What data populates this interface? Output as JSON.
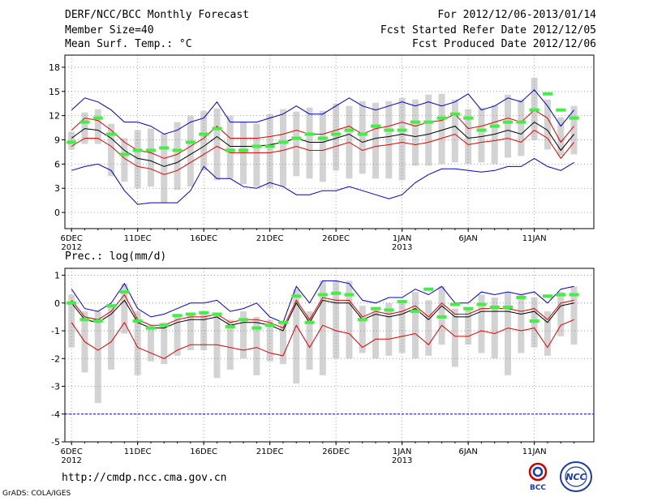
{
  "header": {
    "title": "DERF/NCC/BCC Monthly Forecast",
    "member_size": "Member Size=40",
    "variable": "Mean Surf. Temp.: °C",
    "for_range": "For 2012/12/06-2013/01/14",
    "fcst_started": "Fcst Started Refer Date 2012/12/05",
    "fcst_produced": "Fcst Produced Date 2012/12/06"
  },
  "footer": {
    "url": "http://cmdp.ncc.cma.gov.cn",
    "credit": "GrADS: COLA/IGES",
    "logo_bcc": "BCC",
    "logo_ncc": "NCC"
  },
  "colors": {
    "mean": "#000000",
    "spread": "#e00000",
    "envelope": "#0000cc",
    "box": "#d3d3d3",
    "observed": "#44ee44",
    "grid": "#888888"
  },
  "chart_data": [
    {
      "type": "line",
      "title": "Mean Surf. Temp.: °C",
      "x_tick_labels": [
        "6DEC",
        "11DEC",
        "16DEC",
        "21DEC",
        "26DEC",
        "1JAN",
        "6JAN",
        "11JAN"
      ],
      "x_tick_days": [
        1,
        6,
        11,
        16,
        21,
        26,
        31,
        36
      ],
      "year_labels": [
        {
          "day": 1,
          "text": "2012"
        },
        {
          "day": 26,
          "text": "2013"
        }
      ],
      "ylim": [
        -2,
        19.5
      ],
      "yticks": [
        0,
        3,
        6,
        9,
        12,
        15,
        18
      ],
      "grid": true,
      "days": [
        1,
        2,
        3,
        4,
        5,
        6,
        7,
        8,
        9,
        10,
        11,
        12,
        13,
        14,
        15,
        16,
        17,
        18,
        19,
        20,
        21,
        22,
        23,
        24,
        25,
        26,
        27,
        28,
        29,
        30,
        31,
        32,
        33,
        34,
        35,
        36,
        37,
        38,
        39
      ],
      "series": [
        {
          "name": "max",
          "color": "#0000cc",
          "values": [
            12.7,
            14.2,
            13.7,
            12.7,
            11.2,
            11.2,
            10.7,
            9.7,
            10.2,
            11.2,
            11.7,
            13.7,
            11.2,
            11.2,
            11.2,
            11.7,
            12.2,
            13.2,
            12.2,
            12.2,
            13.2,
            14.2,
            13.2,
            12.7,
            13.2,
            13.7,
            13.2,
            13.7,
            13.2,
            13.7,
            14.7,
            12.7,
            13.2,
            14.2,
            13.7,
            15.2,
            13.2,
            10.7,
            12.7
          ]
        },
        {
          "name": "upper",
          "color": "#e00000",
          "values": [
            10.2,
            11.7,
            11.4,
            10.2,
            8.7,
            7.7,
            7.4,
            6.7,
            7.2,
            8.2,
            9.2,
            10.7,
            9.2,
            9.2,
            9.2,
            9.4,
            9.7,
            10.2,
            9.7,
            9.7,
            10.2,
            10.7,
            9.7,
            10.4,
            10.7,
            11.2,
            10.7,
            11.2,
            11.4,
            12.2,
            10.4,
            10.7,
            11.2,
            11.7,
            11.2,
            12.7,
            11.7,
            8.7,
            10.7
          ]
        },
        {
          "name": "mean",
          "color": "#000000",
          "values": [
            9.2,
            10.4,
            10.2,
            9.2,
            7.7,
            6.7,
            6.4,
            5.7,
            6.2,
            7.2,
            8.2,
            9.4,
            8.2,
            8.2,
            8.2,
            8.4,
            8.7,
            9.2,
            8.7,
            8.7,
            9.2,
            9.7,
            8.7,
            9.2,
            9.4,
            9.7,
            9.4,
            9.7,
            10.2,
            10.7,
            9.2,
            9.4,
            9.7,
            10.2,
            9.7,
            11.2,
            10.2,
            7.7,
            9.7
          ]
        },
        {
          "name": "lower",
          "color": "#e00000",
          "values": [
            8.2,
            9.2,
            9.2,
            8.2,
            6.7,
            5.7,
            5.4,
            4.7,
            5.2,
            6.2,
            7.2,
            8.2,
            7.4,
            7.4,
            7.4,
            7.4,
            7.7,
            8.2,
            7.7,
            7.7,
            8.2,
            8.7,
            7.7,
            8.2,
            8.4,
            8.7,
            8.4,
            8.7,
            9.2,
            9.7,
            8.4,
            8.7,
            8.9,
            9.2,
            8.7,
            10.2,
            9.2,
            6.7,
            8.7
          ]
        },
        {
          "name": "min",
          "color": "#0000cc",
          "values": [
            5.2,
            5.7,
            6.0,
            5.2,
            2.7,
            1.0,
            1.2,
            1.2,
            1.2,
            2.7,
            5.7,
            4.2,
            4.2,
            3.2,
            3.0,
            3.7,
            3.2,
            2.2,
            2.2,
            2.7,
            2.7,
            3.2,
            2.7,
            2.2,
            1.7,
            2.2,
            3.7,
            4.7,
            5.4,
            5.4,
            5.2,
            5.0,
            5.2,
            5.7,
            5.7,
            6.7,
            5.7,
            5.2,
            6.2
          ]
        }
      ],
      "boxes": {
        "low": [
          7.8,
          8.5,
          8.5,
          4.5,
          3.8,
          3.0,
          3.2,
          1.2,
          2.8,
          3.2,
          5.2,
          4.0,
          4.2,
          3.5,
          3.2,
          3.0,
          3.2,
          4.5,
          4.2,
          3.8,
          5.2,
          4.2,
          4.8,
          4.2,
          4.2,
          4.0,
          5.8,
          5.8,
          6.0,
          6.2,
          6.0,
          6.2,
          6.0,
          6.8,
          7.0,
          9.0,
          7.8,
          7.0,
          7.2
        ],
        "high": [
          10.0,
          12.4,
          12.8,
          11.0,
          9.2,
          10.2,
          10.4,
          9.8,
          11.2,
          12.0,
          12.6,
          12.9,
          12.0,
          11.2,
          11.0,
          12.2,
          12.8,
          12.5,
          13.0,
          12.6,
          13.5,
          13.2,
          13.8,
          13.6,
          13.8,
          14.2,
          14.0,
          14.6,
          14.7,
          14.0,
          12.8,
          13.0,
          13.3,
          14.6,
          14.0,
          16.7,
          14.0,
          11.8,
          13.2
        ]
      },
      "observed": [
        8.7,
        11.2,
        11.7,
        9.7,
        7.2,
        7.7,
        7.7,
        8.0,
        7.7,
        8.7,
        9.7,
        10.4,
        7.7,
        7.7,
        8.2,
        8.2,
        8.7,
        9.2,
        9.7,
        9.2,
        9.7,
        10.2,
        9.7,
        10.7,
        10.2,
        10.2,
        11.2,
        11.2,
        11.7,
        12.2,
        11.7,
        10.2,
        10.7,
        11.2,
        11.2,
        12.7,
        14.7,
        12.7,
        11.7
      ]
    },
    {
      "type": "line",
      "title": "Prec.: log(mm/d)",
      "x_tick_labels": [
        "6DEC",
        "11DEC",
        "16DEC",
        "21DEC",
        "26DEC",
        "1JAN",
        "6JAN",
        "11JAN"
      ],
      "x_tick_days": [
        1,
        6,
        11,
        16,
        21,
        26,
        31,
        36
      ],
      "year_labels": [
        {
          "day": 1,
          "text": "2012"
        },
        {
          "day": 26,
          "text": "2013"
        }
      ],
      "ylim": [
        -5,
        1.25
      ],
      "yticks": [
        -5,
        -4,
        -3,
        -2,
        -1,
        0,
        1
      ],
      "grid": true,
      "reference_line": {
        "value": -4,
        "color": "#0000cc",
        "style": "dash"
      },
      "days": [
        1,
        2,
        3,
        4,
        5,
        6,
        7,
        8,
        9,
        10,
        11,
        12,
        13,
        14,
        15,
        16,
        17,
        18,
        19,
        20,
        21,
        22,
        23,
        24,
        25,
        26,
        27,
        28,
        29,
        30,
        31,
        32,
        33,
        34,
        35,
        36,
        37,
        38,
        39
      ],
      "series": [
        {
          "name": "max",
          "color": "#0000cc",
          "values": [
            0.5,
            -0.2,
            -0.3,
            0.0,
            0.7,
            -0.2,
            -0.5,
            -0.4,
            -0.2,
            0.0,
            0.0,
            0.1,
            -0.3,
            -0.2,
            0.0,
            -0.5,
            -0.7,
            0.6,
            0.0,
            0.8,
            0.8,
            0.7,
            0.1,
            0.0,
            0.2,
            0.2,
            0.5,
            0.3,
            0.6,
            0.0,
            0.0,
            0.4,
            0.3,
            0.4,
            0.3,
            0.4,
            0.0,
            0.5,
            0.6
          ]
        },
        {
          "name": "upper",
          "color": "#e00000",
          "values": [
            0.1,
            -0.5,
            -0.6,
            -0.3,
            0.3,
            -0.6,
            -0.8,
            -0.8,
            -0.6,
            -0.5,
            -0.5,
            -0.4,
            -0.7,
            -0.6,
            -0.6,
            -0.7,
            -0.9,
            0.1,
            -0.6,
            0.2,
            0.1,
            0.1,
            -0.5,
            -0.3,
            -0.4,
            -0.3,
            -0.1,
            -0.5,
            0.0,
            -0.4,
            -0.4,
            -0.2,
            -0.2,
            -0.2,
            -0.3,
            -0.2,
            -0.6,
            0.0,
            0.1
          ]
        },
        {
          "name": "mean",
          "color": "#000000",
          "values": [
            0.0,
            -0.6,
            -0.7,
            -0.4,
            0.1,
            -0.7,
            -0.9,
            -0.9,
            -0.7,
            -0.6,
            -0.6,
            -0.5,
            -0.8,
            -0.7,
            -0.7,
            -0.8,
            -1.0,
            0.0,
            -0.7,
            0.1,
            0.0,
            0.0,
            -0.6,
            -0.4,
            -0.5,
            -0.4,
            -0.2,
            -0.6,
            -0.1,
            -0.5,
            -0.5,
            -0.3,
            -0.3,
            -0.3,
            -0.4,
            -0.3,
            -0.7,
            -0.1,
            0.0
          ]
        },
        {
          "name": "lower",
          "color": "#e00000",
          "values": [
            -0.7,
            -1.4,
            -1.7,
            -1.4,
            -0.7,
            -1.6,
            -1.8,
            -2.0,
            -1.7,
            -1.5,
            -1.5,
            -1.5,
            -1.6,
            -1.7,
            -1.6,
            -1.8,
            -1.9,
            -0.8,
            -1.6,
            -0.8,
            -1.0,
            -1.1,
            -1.6,
            -1.3,
            -1.3,
            -1.2,
            -1.1,
            -1.5,
            -0.8,
            -1.2,
            -1.2,
            -1.0,
            -1.1,
            -0.9,
            -1.0,
            -0.9,
            -1.6,
            -0.8,
            -0.6
          ]
        },
        {
          "name": "min",
          "color": "#000000",
          "values": [
            -4.0,
            -4.0,
            -4.0,
            -4.0,
            -4.0,
            -4.0,
            -4.0,
            -4.0,
            -4.0,
            -4.0,
            -4.0,
            -4.0,
            -4.0,
            -4.0,
            -4.0,
            -4.0,
            -4.0,
            -4.0,
            -4.0,
            -4.0,
            -4.0,
            -4.0,
            -4.0,
            -4.0,
            -4.0,
            -4.0,
            -4.0,
            -4.0,
            -4.0,
            -4.0,
            -4.0,
            -4.0,
            -4.0,
            -4.0,
            -4.0,
            -4.0,
            -4.0,
            -4.0,
            -4.0
          ],
          "hidden": true
        }
      ],
      "boxes": {
        "low": [
          -1.6,
          -2.5,
          -3.6,
          -2.4,
          -1.1,
          -2.6,
          -2.1,
          -2.2,
          -1.9,
          -1.7,
          -1.7,
          -2.7,
          -2.4,
          -2.0,
          -2.6,
          -2.1,
          -2.2,
          -2.9,
          -2.4,
          -2.6,
          -2.0,
          -2.0,
          -1.8,
          -2.0,
          -1.9,
          -1.8,
          -2.0,
          -1.9,
          -1.5,
          -2.3,
          -1.5,
          -1.8,
          -2.0,
          -2.6,
          -1.8,
          -1.6,
          -1.9,
          -1.2,
          -1.5
        ],
        "high": [
          0.3,
          -0.3,
          -0.3,
          -0.1,
          0.7,
          -0.3,
          -0.8,
          -0.7,
          -0.4,
          -0.4,
          -0.3,
          -0.4,
          -0.6,
          -0.3,
          -0.5,
          -0.6,
          -0.7,
          0.5,
          -0.3,
          0.8,
          0.8,
          0.8,
          -0.1,
          -0.2,
          0.0,
          0.0,
          0.4,
          0.1,
          0.6,
          -0.2,
          -0.2,
          0.3,
          0.2,
          0.4,
          0.3,
          0.2,
          -0.3,
          0.4,
          0.6
        ]
      },
      "observed": [
        0.0,
        -0.6,
        -0.65,
        -0.1,
        0.4,
        -0.65,
        -0.9,
        -0.8,
        -0.45,
        -0.4,
        -0.35,
        -0.4,
        -0.85,
        -0.6,
        -0.9,
        -0.8,
        -0.7,
        0.25,
        -0.7,
        0.3,
        0.35,
        0.3,
        -0.6,
        -0.2,
        -0.25,
        0.05,
        -0.3,
        0.5,
        -0.5,
        -0.05,
        -0.2,
        -0.05,
        -0.15,
        -0.15,
        0.2,
        -0.65,
        0.25,
        0.3,
        0.3
      ]
    }
  ]
}
